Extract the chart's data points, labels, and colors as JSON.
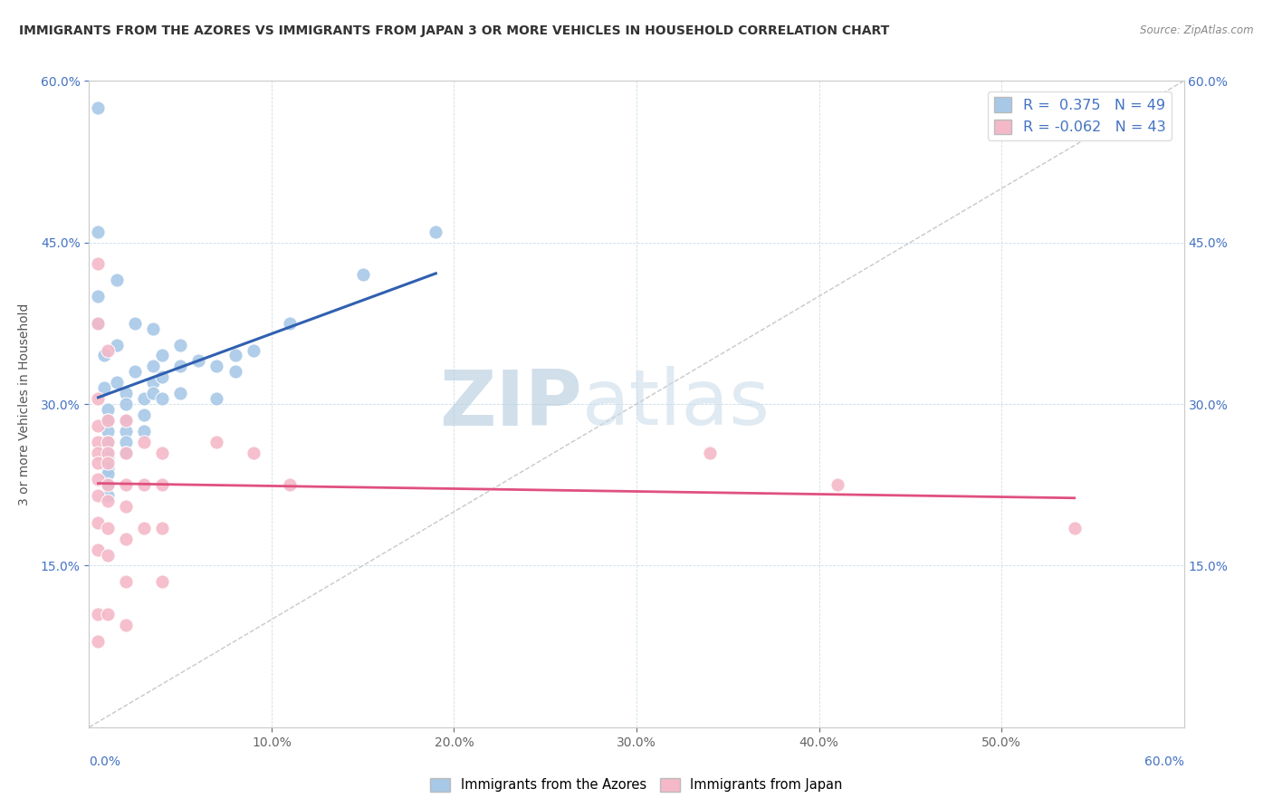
{
  "title": "IMMIGRANTS FROM THE AZORES VS IMMIGRANTS FROM JAPAN 3 OR MORE VEHICLES IN HOUSEHOLD CORRELATION CHART",
  "source": "Source: ZipAtlas.com",
  "ylabel": "3 or more Vehicles in Household",
  "xlim": [
    0.0,
    0.6
  ],
  "ylim": [
    0.0,
    0.6
  ],
  "xtick_values": [
    0.0,
    0.1,
    0.2,
    0.3,
    0.4,
    0.5,
    0.6
  ],
  "ytick_values": [
    0.15,
    0.3,
    0.45,
    0.6
  ],
  "ytick_labels": [
    "15.0%",
    "30.0%",
    "45.0%",
    "60.0%"
  ],
  "azores_color": "#a8c8e8",
  "japan_color": "#f4b8c8",
  "azores_R": 0.375,
  "azores_N": 49,
  "japan_R": -0.062,
  "japan_N": 43,
  "azores_line_color": "#3060b0",
  "japan_line_color": "#e05080",
  "diagonal_color": "#bbbbbb",
  "watermark_zip": "ZIP",
  "watermark_atlas": "atlas",
  "azores_points": [
    [
      0.005,
      0.575
    ],
    [
      0.005,
      0.46
    ],
    [
      0.005,
      0.4
    ],
    [
      0.005,
      0.375
    ],
    [
      0.008,
      0.345
    ],
    [
      0.008,
      0.315
    ],
    [
      0.01,
      0.295
    ],
    [
      0.01,
      0.285
    ],
    [
      0.01,
      0.275
    ],
    [
      0.01,
      0.265
    ],
    [
      0.01,
      0.255
    ],
    [
      0.01,
      0.25
    ],
    [
      0.01,
      0.24
    ],
    [
      0.01,
      0.235
    ],
    [
      0.01,
      0.225
    ],
    [
      0.01,
      0.215
    ],
    [
      0.015,
      0.415
    ],
    [
      0.015,
      0.355
    ],
    [
      0.015,
      0.32
    ],
    [
      0.02,
      0.31
    ],
    [
      0.02,
      0.3
    ],
    [
      0.02,
      0.285
    ],
    [
      0.02,
      0.275
    ],
    [
      0.02,
      0.265
    ],
    [
      0.02,
      0.255
    ],
    [
      0.025,
      0.375
    ],
    [
      0.025,
      0.33
    ],
    [
      0.03,
      0.305
    ],
    [
      0.03,
      0.29
    ],
    [
      0.03,
      0.275
    ],
    [
      0.035,
      0.37
    ],
    [
      0.035,
      0.335
    ],
    [
      0.035,
      0.32
    ],
    [
      0.035,
      0.31
    ],
    [
      0.04,
      0.345
    ],
    [
      0.04,
      0.325
    ],
    [
      0.04,
      0.305
    ],
    [
      0.05,
      0.355
    ],
    [
      0.05,
      0.335
    ],
    [
      0.05,
      0.31
    ],
    [
      0.06,
      0.34
    ],
    [
      0.07,
      0.335
    ],
    [
      0.07,
      0.305
    ],
    [
      0.08,
      0.345
    ],
    [
      0.08,
      0.33
    ],
    [
      0.09,
      0.35
    ],
    [
      0.11,
      0.375
    ],
    [
      0.15,
      0.42
    ],
    [
      0.19,
      0.46
    ]
  ],
  "japan_points": [
    [
      0.005,
      0.43
    ],
    [
      0.005,
      0.375
    ],
    [
      0.005,
      0.305
    ],
    [
      0.005,
      0.28
    ],
    [
      0.005,
      0.265
    ],
    [
      0.005,
      0.255
    ],
    [
      0.005,
      0.245
    ],
    [
      0.005,
      0.23
    ],
    [
      0.005,
      0.215
    ],
    [
      0.005,
      0.19
    ],
    [
      0.005,
      0.165
    ],
    [
      0.005,
      0.105
    ],
    [
      0.005,
      0.08
    ],
    [
      0.01,
      0.35
    ],
    [
      0.01,
      0.285
    ],
    [
      0.01,
      0.265
    ],
    [
      0.01,
      0.255
    ],
    [
      0.01,
      0.245
    ],
    [
      0.01,
      0.225
    ],
    [
      0.01,
      0.21
    ],
    [
      0.01,
      0.185
    ],
    [
      0.01,
      0.16
    ],
    [
      0.01,
      0.105
    ],
    [
      0.02,
      0.285
    ],
    [
      0.02,
      0.255
    ],
    [
      0.02,
      0.225
    ],
    [
      0.02,
      0.205
    ],
    [
      0.02,
      0.175
    ],
    [
      0.02,
      0.135
    ],
    [
      0.02,
      0.095
    ],
    [
      0.03,
      0.265
    ],
    [
      0.03,
      0.225
    ],
    [
      0.03,
      0.185
    ],
    [
      0.04,
      0.255
    ],
    [
      0.04,
      0.225
    ],
    [
      0.04,
      0.185
    ],
    [
      0.04,
      0.135
    ],
    [
      0.07,
      0.265
    ],
    [
      0.09,
      0.255
    ],
    [
      0.11,
      0.225
    ],
    [
      0.34,
      0.255
    ],
    [
      0.41,
      0.225
    ],
    [
      0.54,
      0.185
    ]
  ]
}
